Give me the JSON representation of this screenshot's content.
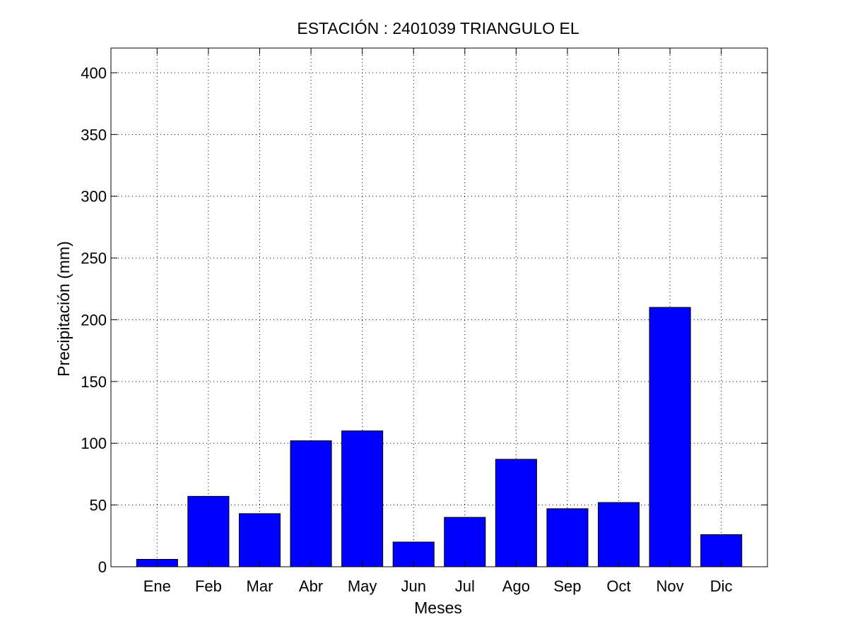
{
  "chart_data": {
    "type": "bar",
    "title": "ESTACIÓN :  2401039  TRIANGULO EL",
    "xlabel": "Meses",
    "ylabel": "Precipitación (mm)",
    "categories": [
      "Ene",
      "Feb",
      "Mar",
      "Abr",
      "May",
      "Jun",
      "Jul",
      "Ago",
      "Sep",
      "Oct",
      "Nov",
      "Dic"
    ],
    "values": [
      6,
      57,
      43,
      102,
      110,
      20,
      40,
      87,
      47,
      52,
      210,
      26
    ],
    "ylim": [
      0,
      420
    ],
    "yticks": [
      0,
      50,
      100,
      150,
      200,
      250,
      300,
      350,
      400
    ],
    "grid": true,
    "bar_color": "#0000ff"
  }
}
